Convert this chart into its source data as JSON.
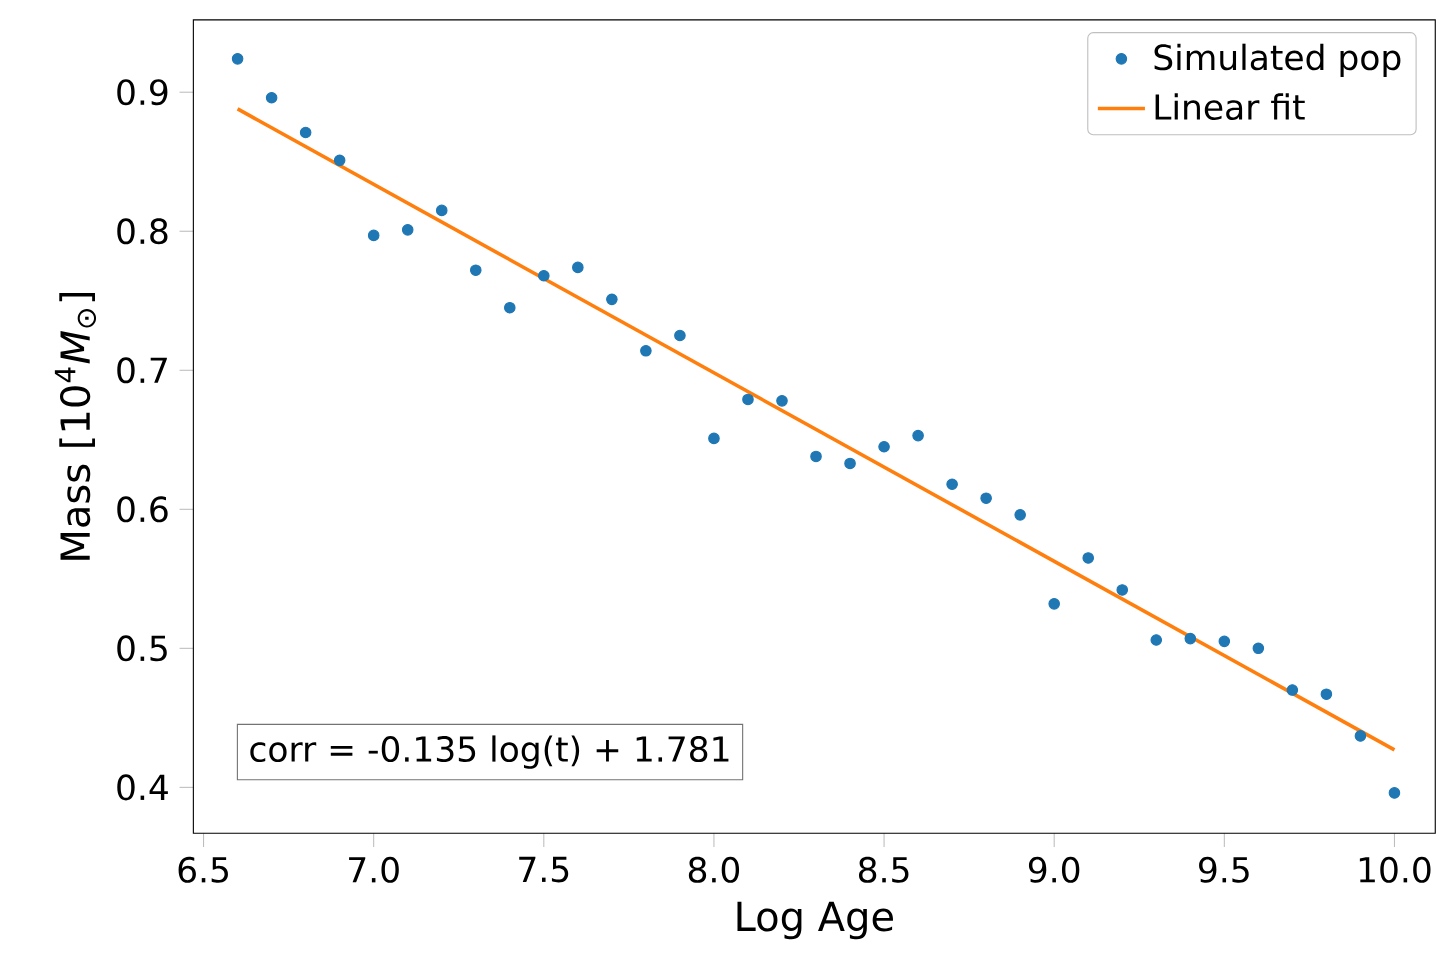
{
  "chart_data": {
    "type": "scatter",
    "xlabel": "Log Age",
    "ylabel": "Mass [10$^{4}$*M*$_{⊙}$]",
    "xlim": [
      6.47,
      10.12
    ],
    "ylim": [
      0.367,
      0.952
    ],
    "xticks": [
      {
        "value": 6.5,
        "label": "6.5"
      },
      {
        "value": 7.0,
        "label": "7.0"
      },
      {
        "value": 7.5,
        "label": "7.5"
      },
      {
        "value": 8.0,
        "label": "8.0"
      },
      {
        "value": 8.5,
        "label": "8.5"
      },
      {
        "value": 9.0,
        "label": "9.0"
      },
      {
        "value": 9.5,
        "label": "9.5"
      },
      {
        "value": 10.0,
        "label": "10.0"
      }
    ],
    "yticks": [
      0.4,
      0.5,
      0.6,
      0.7,
      0.8,
      0.9
    ],
    "legend": "top right",
    "grid": false,
    "annotations": [
      "corr = -0.135 log(t) + 1.781"
    ],
    "series": [
      {
        "name": "Simulated pop",
        "marker": "circle",
        "color": "#1f77b4",
        "x": [
          6.6,
          6.7,
          6.8,
          6.9,
          7.0,
          7.1,
          7.2,
          7.3,
          7.4,
          7.5,
          7.6,
          7.7,
          7.8,
          7.9,
          8.0,
          8.1,
          8.2,
          8.3,
          8.4,
          8.5,
          8.6,
          8.7,
          8.8,
          8.9,
          9.0,
          9.1,
          9.2,
          9.3,
          9.4,
          9.5,
          9.6,
          9.7,
          9.8,
          9.9,
          10.0
        ],
        "values": [
          0.924,
          0.896,
          0.871,
          0.851,
          0.797,
          0.801,
          0.815,
          0.772,
          0.745,
          0.768,
          0.774,
          0.751,
          0.714,
          0.725,
          0.651,
          0.679,
          0.678,
          0.638,
          0.633,
          0.645,
          0.653,
          0.618,
          0.608,
          0.596,
          0.532,
          0.565,
          0.542,
          0.506,
          0.507,
          0.505,
          0.5,
          0.47,
          0.467,
          0.437,
          0.396
        ]
      },
      {
        "name": "Linear fit",
        "type": "line",
        "color": "#ff7f0e",
        "x": [
          6.6,
          10.0
        ],
        "values": [
          0.888,
          0.427
        ]
      }
    ]
  }
}
